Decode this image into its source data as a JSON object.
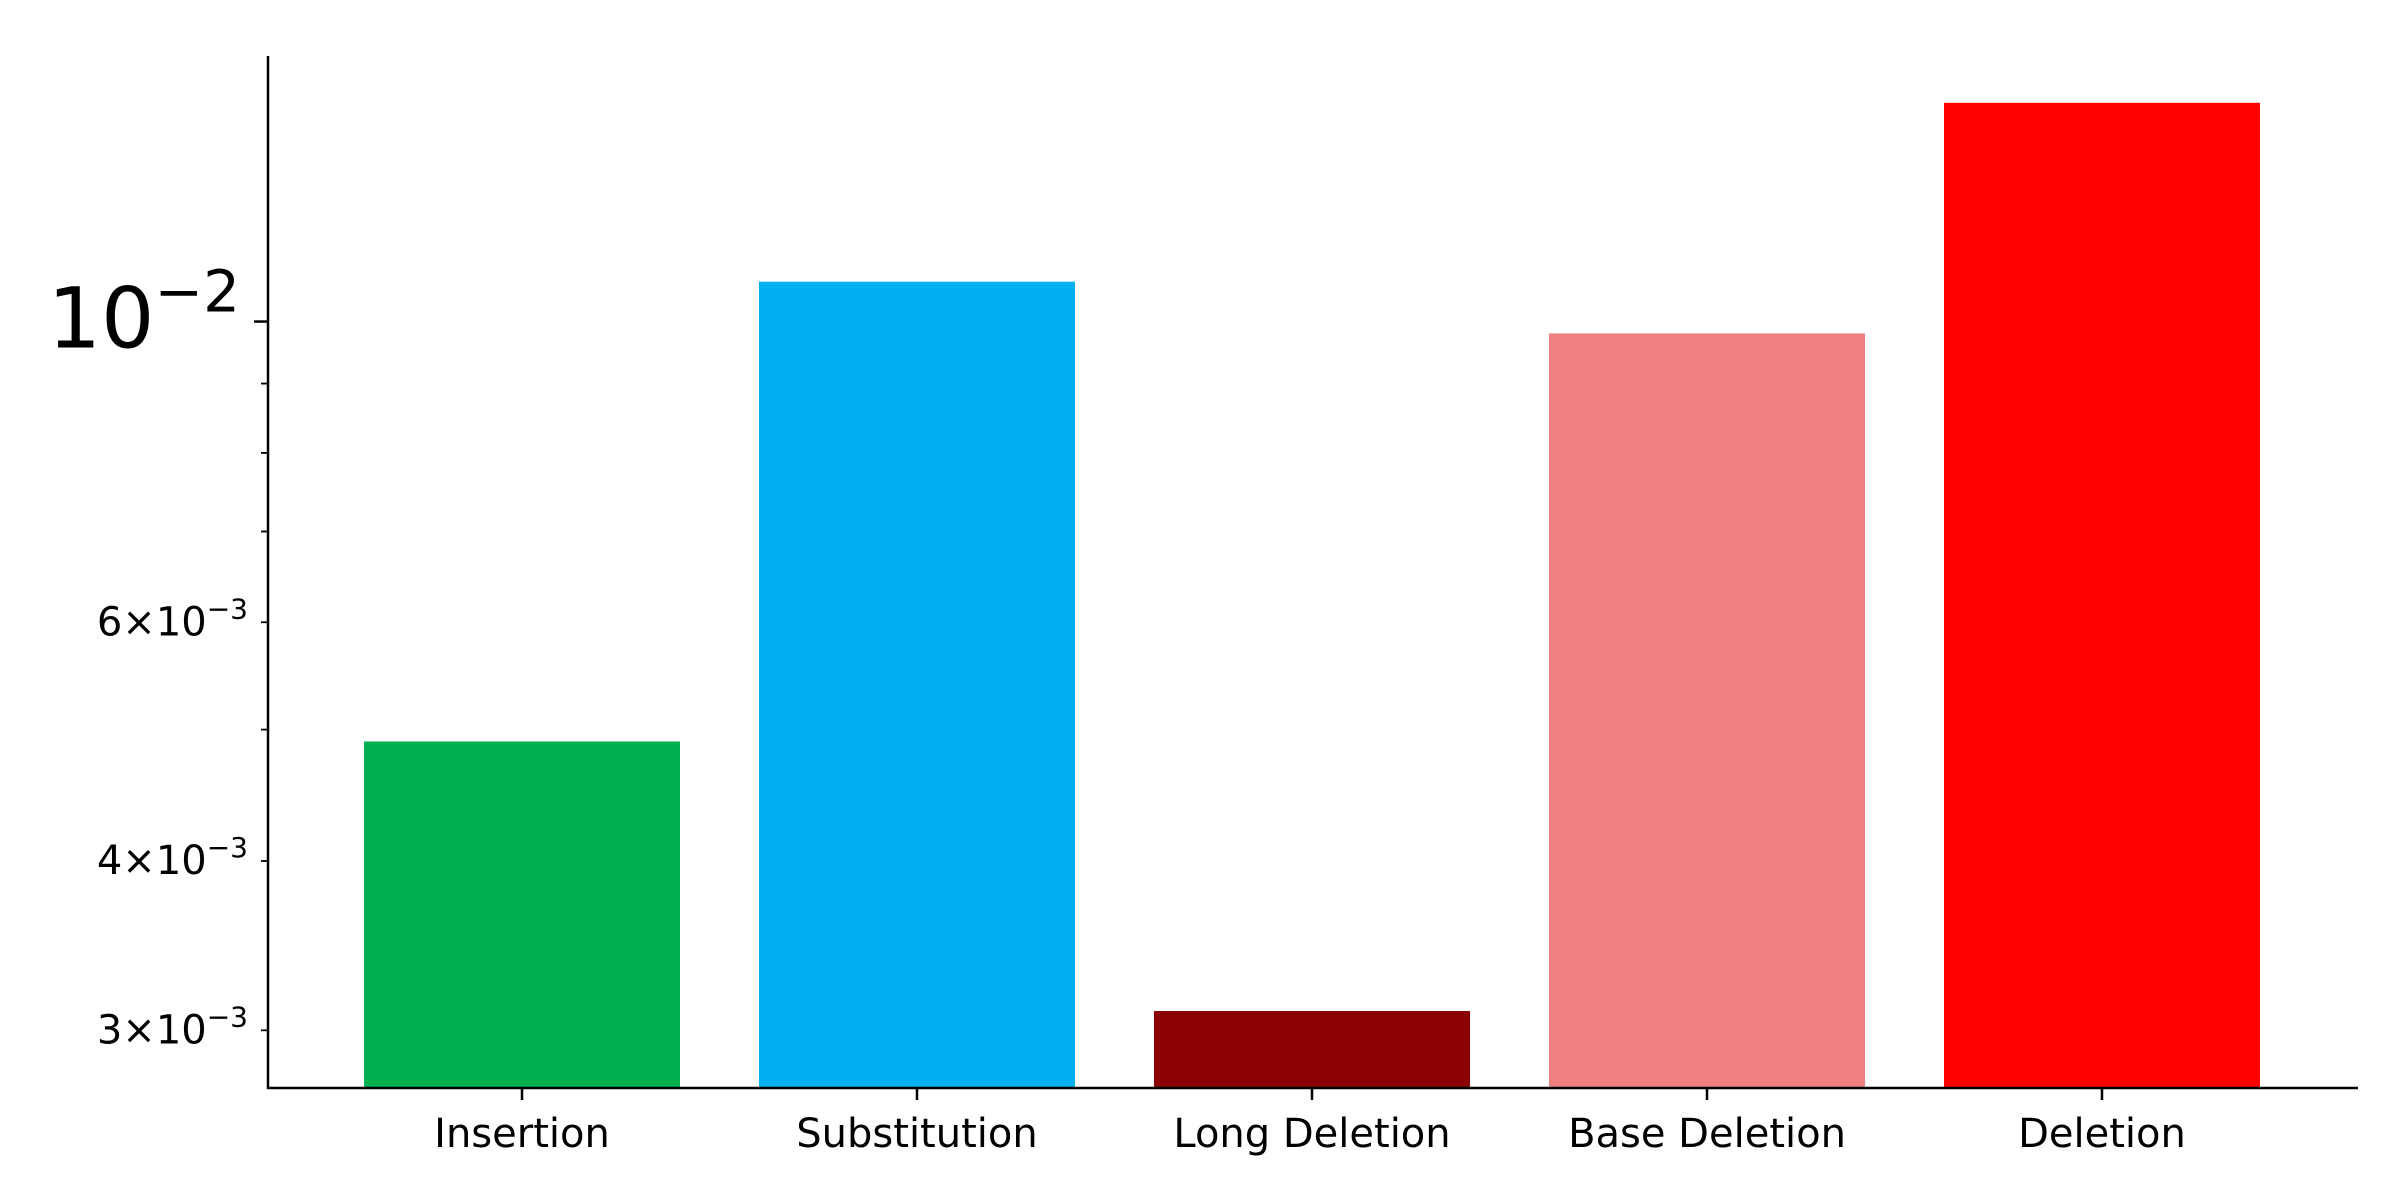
{
  "chart_data": {
    "type": "bar",
    "title": "",
    "xlabel": "",
    "ylabel": "",
    "yscale": "log",
    "ylim": [
      0.00272,
      0.0157
    ],
    "grid": false,
    "legend": "none",
    "categories": [
      "Insertion",
      "Substitution",
      "Long Deletion",
      "Base Deletion",
      "Deletion"
    ],
    "values": [
      0.0049,
      0.0107,
      0.0031,
      0.0098,
      0.0145
    ],
    "colors": [
      "#00b050",
      "#00b0f0",
      "#8b0000",
      "#f08080",
      "#ff0000"
    ],
    "yticks_major": [
      {
        "value": 0.01,
        "mantissa": "",
        "base": "10",
        "exp": "−2"
      }
    ],
    "yticks_minor": [
      {
        "value": 0.003,
        "mantissa": "3",
        "base": "10",
        "exp": "−3",
        "label": true
      },
      {
        "value": 0.004,
        "mantissa": "4",
        "base": "10",
        "exp": "−3",
        "label": true
      },
      {
        "value": 0.005,
        "label": false
      },
      {
        "value": 0.006,
        "mantissa": "6",
        "base": "10",
        "exp": "−3",
        "label": true
      },
      {
        "value": 0.007,
        "label": false
      },
      {
        "value": 0.008,
        "label": false
      },
      {
        "value": 0.009,
        "label": false
      }
    ]
  }
}
